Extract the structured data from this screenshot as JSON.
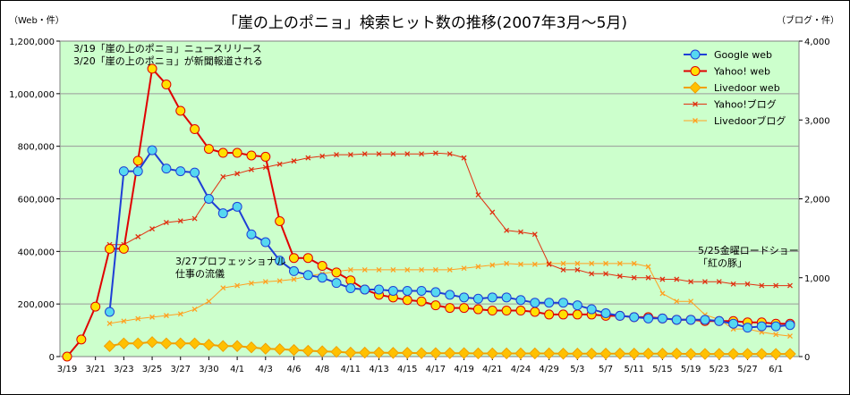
{
  "chart_data": {
    "type": "line",
    "title": "「崖の上のポニョ」検索ヒット数の推移(2007年3月～5月)",
    "ylabel_left": "（Web・件）",
    "ylabel_right": "（ブログ・件）",
    "ylim_left": [
      0,
      1200000
    ],
    "ylim_right": [
      0,
      4000
    ],
    "left_ticks": [
      "0",
      "200,000",
      "400,000",
      "600,000",
      "800,000",
      "1,000,000",
      "1,200,000"
    ],
    "right_ticks": [
      "0",
      "1,000",
      "2,000",
      "3,000",
      "4,000"
    ],
    "x_count": 52,
    "x_tick_labels": [
      {
        "i": 0,
        "label": "3/19"
      },
      {
        "i": 2,
        "label": "3/21"
      },
      {
        "i": 4,
        "label": "3/23"
      },
      {
        "i": 6,
        "label": "3/25"
      },
      {
        "i": 8,
        "label": "3/27"
      },
      {
        "i": 10,
        "label": "3/30"
      },
      {
        "i": 12,
        "label": "4/1"
      },
      {
        "i": 14,
        "label": "4/3"
      },
      {
        "i": 16,
        "label": "4/6"
      },
      {
        "i": 18,
        "label": "4/8"
      },
      {
        "i": 20,
        "label": "4/11"
      },
      {
        "i": 22,
        "label": "4/13"
      },
      {
        "i": 24,
        "label": "4/15"
      },
      {
        "i": 26,
        "label": "4/17"
      },
      {
        "i": 28,
        "label": "4/19"
      },
      {
        "i": 30,
        "label": "4/21"
      },
      {
        "i": 32,
        "label": "4/24"
      },
      {
        "i": 34,
        "label": "4/29"
      },
      {
        "i": 36,
        "label": "5/3"
      },
      {
        "i": 38,
        "label": "5/7"
      },
      {
        "i": 40,
        "label": "5/11"
      },
      {
        "i": 42,
        "label": "5/15"
      },
      {
        "i": 44,
        "label": "5/19"
      },
      {
        "i": 46,
        "label": "5/23"
      },
      {
        "i": 48,
        "label": "5/27"
      },
      {
        "i": 50,
        "label": "6/1"
      }
    ],
    "series": [
      {
        "name": "Google web",
        "axis": "left",
        "color": "#1f3fd6",
        "marker": "circle",
        "marker_fill": "#55d8f0",
        "values": [
          null,
          null,
          null,
          170000,
          705000,
          705000,
          785000,
          715000,
          705000,
          700000,
          600000,
          545000,
          570000,
          465000,
          435000,
          365000,
          325000,
          310000,
          300000,
          280000,
          260000,
          255000,
          255000,
          250000,
          250000,
          250000,
          245000,
          235000,
          225000,
          220000,
          225000,
          225000,
          215000,
          205000,
          205000,
          205000,
          195000,
          180000,
          165000,
          155000,
          150000,
          145000,
          145000,
          140000,
          140000,
          140000,
          135000,
          125000,
          110000,
          115000,
          115000,
          120000
        ]
      },
      {
        "name": "Yahoo! web",
        "axis": "left",
        "color": "#e00000",
        "marker": "circle",
        "marker_fill": "#ffe000",
        "values": [
          0,
          65000,
          190000,
          410000,
          410000,
          745000,
          1095000,
          1035000,
          935000,
          865000,
          790000,
          775000,
          775000,
          765000,
          760000,
          515000,
          375000,
          375000,
          345000,
          320000,
          290000,
          255000,
          235000,
          225000,
          215000,
          210000,
          195000,
          185000,
          185000,
          180000,
          175000,
          175000,
          175000,
          170000,
          160000,
          160000,
          160000,
          160000,
          155000,
          155000,
          150000,
          150000,
          145000,
          140000,
          140000,
          135000,
          135000,
          135000,
          130000,
          130000,
          125000,
          125000
        ]
      },
      {
        "name": "Livedoor web",
        "axis": "left",
        "color": "#f0a000",
        "marker": "diamond",
        "marker_fill": "#ffc000",
        "values": [
          null,
          null,
          null,
          40000,
          50000,
          50000,
          55000,
          50000,
          50000,
          50000,
          45000,
          40000,
          40000,
          35000,
          30000,
          28000,
          25000,
          22000,
          20000,
          18000,
          15000,
          15000,
          15000,
          14000,
          14000,
          13000,
          13000,
          13000,
          13000,
          12000,
          12000,
          12000,
          12000,
          12000,
          12000,
          11000,
          11000,
          11000,
          11000,
          11000,
          11000,
          11000,
          11000,
          11000,
          10000,
          10000,
          10000,
          10000,
          10000,
          10000,
          10000,
          10000
        ]
      },
      {
        "name": "Yahoo!ブログ",
        "axis": "right",
        "color": "#e03010",
        "marker": "x",
        "values": [
          null,
          null,
          null,
          1420,
          1420,
          1520,
          1620,
          1700,
          1720,
          1750,
          2020,
          2280,
          2320,
          2370,
          2400,
          2440,
          2480,
          2520,
          2540,
          2560,
          2560,
          2570,
          2570,
          2570,
          2570,
          2570,
          2580,
          2570,
          2520,
          2050,
          1830,
          1600,
          1580,
          1550,
          1170,
          1100,
          1100,
          1050,
          1050,
          1020,
          1000,
          1000,
          980,
          980,
          950,
          950,
          950,
          920,
          920,
          900,
          900,
          900
        ]
      },
      {
        "name": "Livedoorブログ",
        "axis": "right",
        "color": "#ffa020",
        "marker": "x",
        "values": [
          null,
          null,
          null,
          420,
          450,
          480,
          500,
          520,
          540,
          600,
          700,
          870,
          900,
          930,
          950,
          960,
          980,
          1020,
          1050,
          1080,
          1100,
          1100,
          1100,
          1100,
          1100,
          1100,
          1100,
          1100,
          1120,
          1140,
          1160,
          1180,
          1170,
          1170,
          1180,
          1180,
          1180,
          1180,
          1180,
          1180,
          1180,
          1140,
          800,
          700,
          700,
          530,
          470,
          350,
          350,
          310,
          280,
          260
        ]
      }
    ],
    "annotations": [
      {
        "line1": "3/19「崖の上のポニョ」ニュースリリース",
        "line2": "3/20「崖の上のポニョ」が新聞報道される"
      },
      {
        "line1": "3/27プロフェッショナル",
        "line2": "仕事の流儀"
      },
      {
        "line1": "5/25金曜ロードショー",
        "line2": "「紅の豚」"
      }
    ],
    "plot_background": "#ccffcc",
    "legend_position": "top-right"
  }
}
